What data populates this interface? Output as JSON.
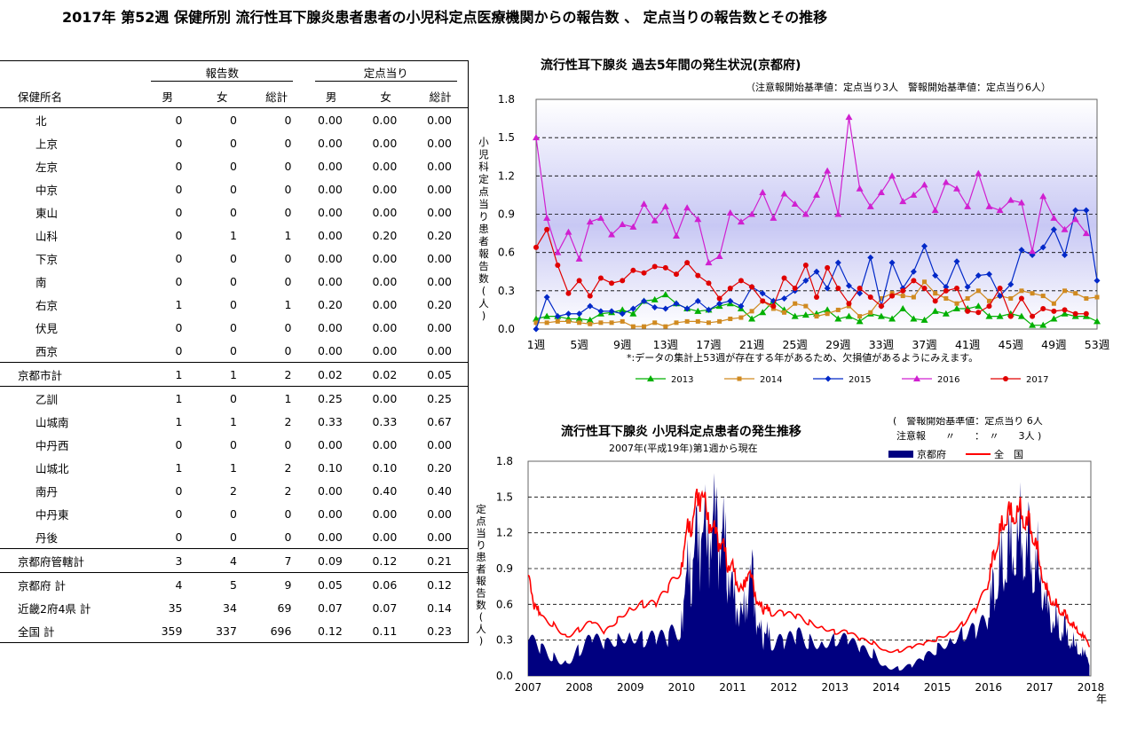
{
  "title": "2017年 第52週 保健所別 流行性耳下腺炎患者患者の小児科定点医療機関からの報告数 、 定点当りの報告数とその推移",
  "table": {
    "group_reports": "報告数",
    "group_per_point": "定点当り",
    "header": [
      "保健所名",
      "男",
      "女",
      "総計",
      "男",
      "女",
      "総計"
    ],
    "rows": [
      [
        "北",
        "0",
        "0",
        "0",
        "0.00",
        "0.00",
        "0.00"
      ],
      [
        "上京",
        "0",
        "0",
        "0",
        "0.00",
        "0.00",
        "0.00"
      ],
      [
        "左京",
        "0",
        "0",
        "0",
        "0.00",
        "0.00",
        "0.00"
      ],
      [
        "中京",
        "0",
        "0",
        "0",
        "0.00",
        "0.00",
        "0.00"
      ],
      [
        "東山",
        "0",
        "0",
        "0",
        "0.00",
        "0.00",
        "0.00"
      ],
      [
        "山科",
        "0",
        "1",
        "1",
        "0.00",
        "0.20",
        "0.20"
      ],
      [
        "下京",
        "0",
        "0",
        "0",
        "0.00",
        "0.00",
        "0.00"
      ],
      [
        "南",
        "0",
        "0",
        "0",
        "0.00",
        "0.00",
        "0.00"
      ],
      [
        "右京",
        "1",
        "0",
        "1",
        "0.20",
        "0.00",
        "0.20"
      ],
      [
        "伏見",
        "0",
        "0",
        "0",
        "0.00",
        "0.00",
        "0.00"
      ],
      [
        "西京",
        "0",
        "0",
        "0",
        "0.00",
        "0.00",
        "0.00"
      ],
      [
        "京都市計",
        "1",
        "1",
        "2",
        "0.02",
        "0.02",
        "0.05"
      ],
      [
        "乙訓",
        "1",
        "0",
        "1",
        "0.25",
        "0.00",
        "0.25"
      ],
      [
        "山城南",
        "1",
        "1",
        "2",
        "0.33",
        "0.33",
        "0.67"
      ],
      [
        "中丹西",
        "0",
        "0",
        "0",
        "0.00",
        "0.00",
        "0.00"
      ],
      [
        "山城北",
        "1",
        "1",
        "2",
        "0.10",
        "0.10",
        "0.20"
      ],
      [
        "南丹",
        "0",
        "2",
        "2",
        "0.00",
        "0.40",
        "0.40"
      ],
      [
        "中丹東",
        "0",
        "0",
        "0",
        "0.00",
        "0.00",
        "0.00"
      ],
      [
        "丹後",
        "0",
        "0",
        "0",
        "0.00",
        "0.00",
        "0.00"
      ],
      [
        "京都府管轄計",
        "3",
        "4",
        "7",
        "0.09",
        "0.12",
        "0.21"
      ],
      [
        "京都府 計",
        "4",
        "5",
        "9",
        "0.05",
        "0.06",
        "0.12"
      ],
      [
        "近畿2府4県 計",
        "35",
        "34",
        "69",
        "0.07",
        "0.07",
        "0.14"
      ],
      [
        "全国 計",
        "359",
        "337",
        "696",
        "0.12",
        "0.11",
        "0.23"
      ]
    ]
  },
  "chart_data": [
    {
      "type": "line",
      "title": "流行性耳下腺炎 過去5年間の発生状況(京都府)",
      "subtitle": "（注意報開始基準値：定点当り3人　警報開始基準値：定点当り6人）",
      "ylabel": "小児科定点当り患者報告数(人)",
      "note": "*:データの集計上53週が存在する年があるため、欠損値があるようにみえます。",
      "ylim": [
        0,
        1.8
      ],
      "yticks": [
        "0.0",
        "0.3",
        "0.6",
        "0.9",
        "1.2",
        "1.5",
        "1.8"
      ],
      "xticks": [
        "1週",
        "5週",
        "9週",
        "13週",
        "17週",
        "21週",
        "25週",
        "29週",
        "33週",
        "37週",
        "41週",
        "45週",
        "49週",
        "53週"
      ],
      "x_week_start": 1,
      "grid": true,
      "legend": "bottom",
      "series": [
        {
          "name": "2013",
          "color": "#00b000",
          "values": [
            0.08,
            0.1,
            0.1,
            0.08,
            0.08,
            0.07,
            0.12,
            0.13,
            0.15,
            0.12,
            0.22,
            0.23,
            0.27,
            0.2,
            0.16,
            0.14,
            0.15,
            0.18,
            0.2,
            0.16,
            0.08,
            0.13,
            0.22,
            0.15,
            0.1,
            0.11,
            0.12,
            0.15,
            0.08,
            0.1,
            0.06,
            0.12,
            0.1,
            0.08,
            0.16,
            0.08,
            0.07,
            0.14,
            0.12,
            0.16,
            0.16,
            0.18,
            0.1,
            0.1,
            0.12,
            0.1,
            0.03,
            0.03,
            0.08,
            0.12,
            0.1,
            0.1,
            0.06
          ]
        },
        {
          "name": "2014",
          "color": "#d08a20",
          "values": [
            0.05,
            0.05,
            0.06,
            0.06,
            0.05,
            0.04,
            0.05,
            0.05,
            0.06,
            0.02,
            0.02,
            0.05,
            0.02,
            0.05,
            0.06,
            0.06,
            0.05,
            0.06,
            0.08,
            0.09,
            0.14,
            0.22,
            0.16,
            0.13,
            0.2,
            0.18,
            0.1,
            0.12,
            0.15,
            0.18,
            0.1,
            0.13,
            0.24,
            0.28,
            0.26,
            0.25,
            0.37,
            0.28,
            0.24,
            0.2,
            0.24,
            0.3,
            0.22,
            0.26,
            0.24,
            0.3,
            0.28,
            0.26,
            0.2,
            0.3,
            0.28,
            0.24,
            0.25
          ]
        },
        {
          "name": "2015",
          "color": "#0028c8",
          "values": [
            0.0,
            0.25,
            0.1,
            0.12,
            0.12,
            0.18,
            0.14,
            0.14,
            0.12,
            0.16,
            0.22,
            0.17,
            0.16,
            0.2,
            0.16,
            0.22,
            0.15,
            0.2,
            0.22,
            0.18,
            0.33,
            0.28,
            0.22,
            0.24,
            0.3,
            0.38,
            0.45,
            0.32,
            0.52,
            0.34,
            0.28,
            0.56,
            0.18,
            0.52,
            0.32,
            0.45,
            0.65,
            0.42,
            0.33,
            0.53,
            0.33,
            0.42,
            0.43,
            0.26,
            0.35,
            0.62,
            0.58,
            0.64,
            0.78,
            0.58,
            0.93,
            0.93,
            0.38
          ]
        },
        {
          "name": "2016",
          "color": "#d020d0",
          "values": [
            1.5,
            0.87,
            0.6,
            0.76,
            0.55,
            0.84,
            0.87,
            0.74,
            0.82,
            0.8,
            0.98,
            0.85,
            0.96,
            0.73,
            0.95,
            0.86,
            0.52,
            0.57,
            0.91,
            0.84,
            0.9,
            1.07,
            0.87,
            1.06,
            0.98,
            0.9,
            1.05,
            1.24,
            0.9,
            1.66,
            1.1,
            0.96,
            1.07,
            1.2,
            1.0,
            1.05,
            1.13,
            0.93,
            1.15,
            1.1,
            0.96,
            1.22,
            0.96,
            0.93,
            1.01,
            0.99,
            0.61,
            1.04,
            0.87,
            0.78,
            0.86,
            0.75
          ]
        },
        {
          "name": "2017",
          "color": "#e00000",
          "values": [
            0.64,
            0.78,
            0.5,
            0.28,
            0.38,
            0.26,
            0.4,
            0.36,
            0.38,
            0.46,
            0.44,
            0.49,
            0.48,
            0.43,
            0.52,
            0.42,
            0.36,
            0.24,
            0.32,
            0.38,
            0.33,
            0.22,
            0.18,
            0.4,
            0.32,
            0.5,
            0.25,
            0.48,
            0.32,
            0.2,
            0.32,
            0.25,
            0.18,
            0.26,
            0.3,
            0.38,
            0.32,
            0.22,
            0.3,
            0.32,
            0.14,
            0.13,
            0.18,
            0.32,
            0.1,
            0.24,
            0.1,
            0.16,
            0.14,
            0.15,
            0.12,
            0.12
          ]
        }
      ]
    },
    {
      "type": "area",
      "title": "流行性耳下腺炎 小児科定点患者の発生推移",
      "subtitle": "2007年(平成19年)第1週から現在",
      "threshold_note": [
        "(　警報開始基準値：定点当り 6人",
        "注意報　　〃　　：　〃　　3人 )"
      ],
      "ylabel": "定点当り患者報告数(人)",
      "xlabel_unit": "年",
      "ylim": [
        0,
        1.8
      ],
      "yticks": [
        "0.0",
        "0.3",
        "0.6",
        "0.9",
        "1.2",
        "1.5",
        "1.8"
      ],
      "xticks": [
        "2007",
        "2008",
        "2009",
        "2010",
        "2011",
        "2012",
        "2013",
        "2014",
        "2015",
        "2016",
        "2017",
        "2018"
      ],
      "legend": "top",
      "series": [
        {
          "name": "京都府",
          "color": "#000080",
          "kind": "area",
          "x": [
            2007.0,
            2007.25,
            2007.5,
            2007.75,
            2008.0,
            2008.25,
            2008.5,
            2008.75,
            2009.0,
            2009.25,
            2009.5,
            2009.75,
            2010.0,
            2010.1,
            2010.2,
            2010.3,
            2010.4,
            2010.5,
            2010.6,
            2010.7,
            2010.8,
            2010.9,
            2011.0,
            2011.1,
            2011.2,
            2011.3,
            2011.4,
            2011.5,
            2011.6,
            2011.75,
            2012.0,
            2012.25,
            2012.5,
            2012.75,
            2013.0,
            2013.25,
            2013.5,
            2013.75,
            2014.0,
            2014.25,
            2014.5,
            2014.75,
            2015.0,
            2015.25,
            2015.5,
            2015.75,
            2016.0,
            2016.1,
            2016.2,
            2016.3,
            2016.4,
            2016.5,
            2016.6,
            2016.7,
            2016.8,
            2016.9,
            2017.0,
            2017.1,
            2017.2,
            2017.3,
            2017.4,
            2017.5,
            2017.6,
            2017.7,
            2017.8,
            2017.9,
            2017.99
          ],
          "values": [
            0.3,
            0.25,
            0.2,
            0.15,
            0.25,
            0.3,
            0.22,
            0.25,
            0.3,
            0.3,
            0.35,
            0.4,
            0.55,
            0.8,
            1.0,
            1.05,
            1.25,
            1.15,
            1.3,
            1.2,
            1.15,
            1.0,
            0.65,
            0.55,
            0.5,
            0.8,
            0.75,
            0.4,
            0.3,
            0.35,
            0.35,
            0.4,
            0.3,
            0.25,
            0.25,
            0.25,
            0.2,
            0.2,
            0.1,
            0.08,
            0.1,
            0.15,
            0.2,
            0.25,
            0.3,
            0.35,
            0.5,
            0.7,
            0.85,
            0.95,
            1.0,
            1.0,
            1.2,
            1.05,
            1.0,
            0.9,
            0.9,
            0.6,
            0.5,
            0.45,
            0.4,
            0.35,
            0.3,
            0.25,
            0.2,
            0.15,
            0.12
          ]
        },
        {
          "name": "全　国",
          "color": "#ff0000",
          "kind": "line",
          "x": [
            2007.0,
            2007.1,
            2007.25,
            2007.5,
            2007.75,
            2008.0,
            2008.25,
            2008.5,
            2008.75,
            2009.0,
            2009.25,
            2009.5,
            2009.75,
            2010.0,
            2010.1,
            2010.2,
            2010.3,
            2010.4,
            2010.5,
            2010.6,
            2010.7,
            2010.8,
            2010.9,
            2011.0,
            2011.1,
            2011.2,
            2011.3,
            2011.4,
            2011.5,
            2011.6,
            2011.75,
            2012.0,
            2012.25,
            2012.5,
            2012.75,
            2013.0,
            2013.25,
            2013.5,
            2013.75,
            2014.0,
            2014.25,
            2014.5,
            2014.75,
            2015.0,
            2015.25,
            2015.5,
            2015.75,
            2016.0,
            2016.1,
            2016.2,
            2016.3,
            2016.4,
            2016.5,
            2016.6,
            2016.7,
            2016.8,
            2016.9,
            2017.0,
            2017.1,
            2017.2,
            2017.3,
            2017.4,
            2017.5,
            2017.6,
            2017.7,
            2017.8,
            2017.9,
            2017.99
          ],
          "values": [
            0.85,
            0.6,
            0.5,
            0.45,
            0.35,
            0.4,
            0.45,
            0.35,
            0.45,
            0.55,
            0.6,
            0.62,
            0.78,
            0.95,
            1.2,
            1.3,
            1.45,
            1.55,
            1.35,
            1.25,
            1.15,
            1.1,
            0.95,
            0.9,
            0.75,
            0.72,
            0.9,
            0.75,
            0.6,
            0.55,
            0.55,
            0.55,
            0.52,
            0.45,
            0.4,
            0.35,
            0.35,
            0.3,
            0.28,
            0.22,
            0.22,
            0.25,
            0.27,
            0.3,
            0.35,
            0.42,
            0.55,
            0.78,
            1.0,
            1.15,
            1.3,
            1.35,
            1.32,
            1.4,
            1.3,
            1.25,
            1.15,
            0.95,
            0.75,
            0.65,
            0.6,
            0.55,
            0.5,
            0.45,
            0.4,
            0.35,
            0.3,
            0.25
          ]
        }
      ]
    }
  ]
}
